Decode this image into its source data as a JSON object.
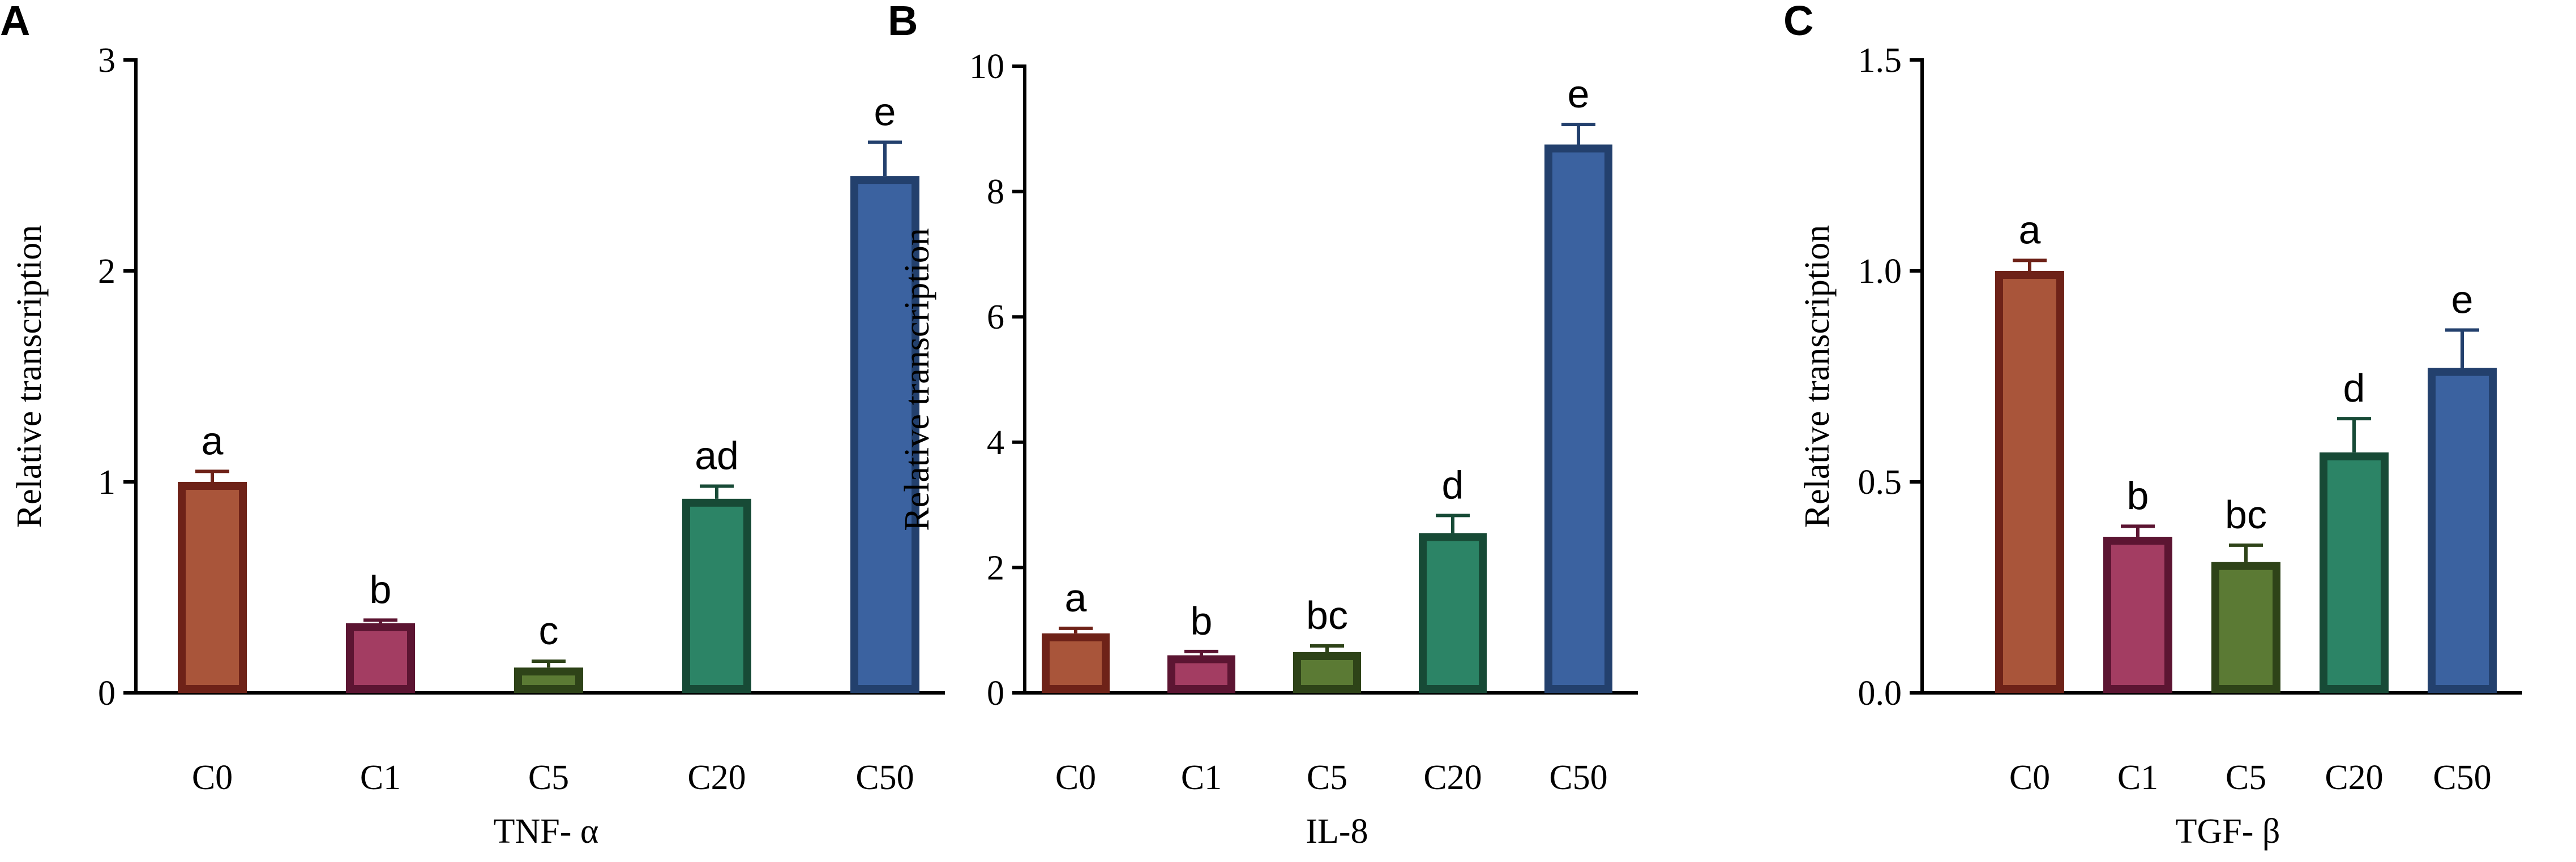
{
  "chart_data": [
    {
      "type": "bar",
      "panel": "A",
      "categories": [
        "C0",
        "C1",
        "C5",
        "C20",
        "C50"
      ],
      "values": [
        1.0,
        0.33,
        0.12,
        0.92,
        2.45
      ],
      "errors": [
        0.05,
        0.015,
        0.03,
        0.06,
        0.16
      ],
      "significance": [
        "a",
        "b",
        "c",
        "ad",
        "e"
      ],
      "xlabel": "TNF- α",
      "ylabel": "Relative transcription",
      "ylim": [
        0,
        3
      ],
      "yticks": [
        "0",
        "1",
        "2",
        "3"
      ],
      "grid": false
    },
    {
      "type": "bar",
      "panel": "B",
      "categories": [
        "C0",
        "C1",
        "C5",
        "C20",
        "C50"
      ],
      "values": [
        0.95,
        0.6,
        0.65,
        2.55,
        8.75
      ],
      "errors": [
        0.08,
        0.06,
        0.1,
        0.28,
        0.32
      ],
      "significance": [
        "a",
        "b",
        "bc",
        "d",
        "e"
      ],
      "xlabel": "IL-8",
      "ylabel": "Relative transcription",
      "ylim": [
        0,
        10
      ],
      "yticks": [
        "0",
        "2",
        "4",
        "6",
        "8",
        "10"
      ],
      "grid": false
    },
    {
      "type": "bar",
      "panel": "C",
      "categories": [
        "C0",
        "C1",
        "C5",
        "C20",
        "C50"
      ],
      "values": [
        1.0,
        0.37,
        0.31,
        0.57,
        0.77
      ],
      "errors": [
        0.025,
        0.025,
        0.04,
        0.08,
        0.09
      ],
      "significance": [
        "a",
        "b",
        "bc",
        "d",
        "e"
      ],
      "xlabel": "TGF- β",
      "ylabel": "Relative transcription",
      "ylim": [
        0,
        1.5
      ],
      "yticks": [
        "0.0",
        "0.5",
        "1.0",
        "1.5"
      ],
      "grid": false
    }
  ],
  "colors": {
    "fills": [
      "#a9553a",
      "#a33d62",
      "#5b7a34",
      "#2c8466",
      "#3b62a0"
    ],
    "borders": [
      "#6e2218",
      "#5c1532",
      "#2e4318",
      "#174a36",
      "#23406d"
    ]
  }
}
